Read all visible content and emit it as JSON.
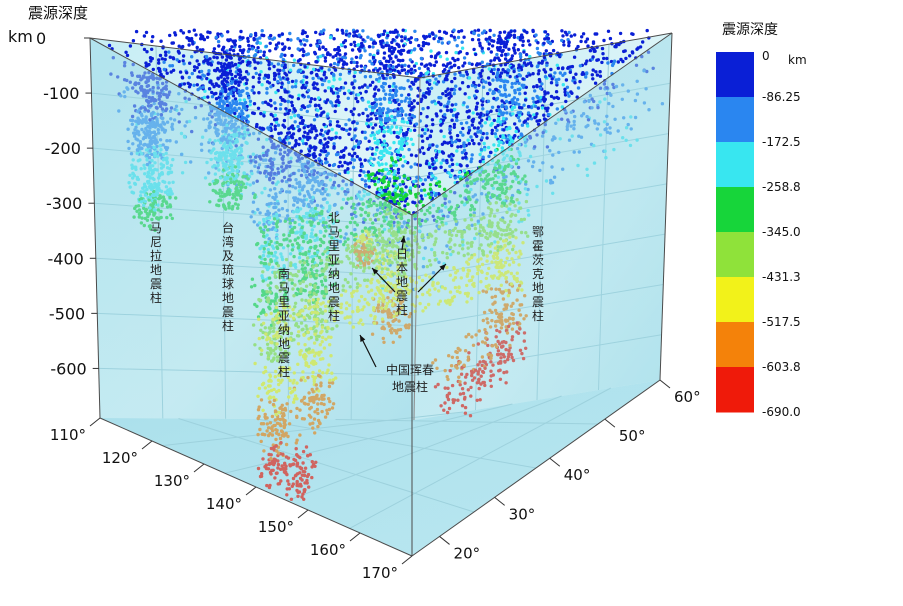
{
  "chart_data": {
    "type": "scatter",
    "title": "震源深度",
    "z_axis": {
      "unit_label": "km",
      "ticks": [
        0,
        -100,
        -200,
        -300,
        -400,
        -500,
        -600
      ],
      "range": [
        -690,
        0
      ]
    },
    "lon_axis": {
      "tick_labels": [
        "110°",
        "120°",
        "130°",
        "140°",
        "150°",
        "160°",
        "170°"
      ],
      "range": [
        110,
        170
      ]
    },
    "lat_axis": {
      "tick_labels": [
        "20°",
        "30°",
        "40°",
        "50°",
        "60°"
      ],
      "range": [
        15,
        60
      ]
    },
    "colorbar": {
      "title": "震源深度",
      "unit": "km",
      "labels": [
        "0",
        "-86.25",
        "-172.5",
        "-258.8",
        "-345.0",
        "-431.3",
        "-517.5",
        "-603.8",
        "-690.0"
      ],
      "colors": [
        "#0a1fd6",
        "#2a86f0",
        "#38e6f0",
        "#17d53a",
        "#8fe23a",
        "#f2f21a",
        "#f4820a",
        "#ef1a0a"
      ]
    },
    "columns": [
      {
        "name": "马尼拉地震柱",
        "vertical": true,
        "lon": 121,
        "lat": 15,
        "depth_range": [
          0,
          -300
        ]
      },
      {
        "name": "台湾及琉球地震柱",
        "vertical": true,
        "lon": 126,
        "lat": 24,
        "depth_range": [
          0,
          -310
        ]
      },
      {
        "name": "北马里亚纳地震柱",
        "vertical": true,
        "lon": 146,
        "lat": 20,
        "depth_range": [
          0,
          -600
        ]
      },
      {
        "name": "南马里亚纳地震柱",
        "vertical": true,
        "lon": 145,
        "lat": 14,
        "depth_range": [
          0,
          -670
        ]
      },
      {
        "name": "日本地震柱",
        "vertical": true,
        "lon": 141,
        "lat": 38,
        "depth_range": [
          0,
          -600
        ]
      },
      {
        "name": "中国珲春\n地震柱",
        "vertical": false,
        "lon": 130.5,
        "lat": 43,
        "depth_range": [
          -500,
          -560
        ]
      },
      {
        "name": "鄂霍茨克地震柱",
        "vertical": true,
        "lon": 152,
        "lat": 48,
        "depth_range": [
          0,
          -680
        ]
      }
    ],
    "grid": true
  }
}
